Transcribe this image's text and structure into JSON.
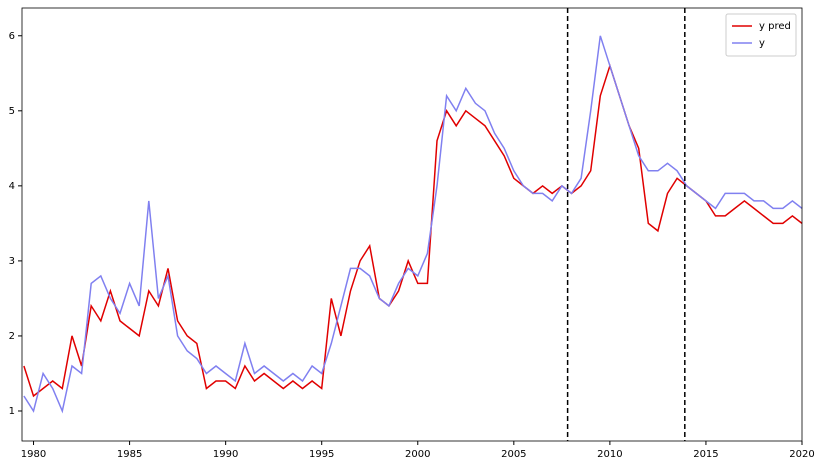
{
  "chart_data": {
    "type": "line",
    "x": [
      1979.5,
      1980,
      1980.5,
      1981,
      1981.5,
      1982,
      1982.5,
      1983,
      1983.5,
      1984,
      1984.5,
      1985,
      1985.5,
      1986,
      1986.5,
      1987,
      1987.5,
      1988,
      1988.5,
      1989,
      1989.5,
      1990,
      1990.5,
      1991,
      1991.5,
      1992,
      1992.5,
      1993,
      1993.5,
      1994,
      1994.5,
      1995,
      1995.5,
      1996,
      1996.5,
      1997,
      1997.5,
      1998,
      1998.5,
      1999,
      1999.5,
      2000,
      2000.5,
      2001,
      2001.5,
      2002,
      2002.5,
      2003,
      2003.5,
      2004,
      2004.5,
      2005,
      2005.5,
      2006,
      2006.5,
      2007,
      2007.5,
      2008,
      2008.5,
      2009,
      2009.5,
      2010,
      2010.5,
      2011,
      2011.5,
      2012,
      2012.5,
      2013,
      2013.5,
      2014,
      2014.5,
      2015,
      2015.5,
      2016,
      2016.5,
      2017,
      2017.5,
      2018,
      2018.5,
      2019,
      2019.5,
      2020
    ],
    "series": [
      {
        "name": "y pred",
        "color": "#e00000",
        "values": [
          1.6,
          1.2,
          1.3,
          1.4,
          1.3,
          2.0,
          1.6,
          2.4,
          2.2,
          2.6,
          2.2,
          2.1,
          2.0,
          2.6,
          2.4,
          2.9,
          2.2,
          2.0,
          1.9,
          1.3,
          1.4,
          1.4,
          1.3,
          1.6,
          1.4,
          1.5,
          1.4,
          1.3,
          1.4,
          1.3,
          1.4,
          1.3,
          2.5,
          2.0,
          2.6,
          3.0,
          3.2,
          2.5,
          2.4,
          2.6,
          3.0,
          2.7,
          2.7,
          4.6,
          5.0,
          4.8,
          5.0,
          4.9,
          4.8,
          4.6,
          4.4,
          4.1,
          4.0,
          3.9,
          4.0,
          3.9,
          4.0,
          3.9,
          4.0,
          4.2,
          5.2,
          5.6,
          5.2,
          4.8,
          4.5,
          3.5,
          3.4,
          3.9,
          4.1,
          4.0,
          3.9,
          3.8,
          3.6,
          3.6,
          3.7,
          3.8,
          3.7,
          3.6,
          3.5,
          3.5,
          3.6,
          3.5
        ]
      },
      {
        "name": "y",
        "color": "#8080f0",
        "values": [
          1.2,
          1.0,
          1.5,
          1.3,
          1.0,
          1.6,
          1.5,
          2.7,
          2.8,
          2.5,
          2.3,
          2.7,
          2.4,
          3.8,
          2.5,
          2.8,
          2.0,
          1.8,
          1.7,
          1.5,
          1.6,
          1.5,
          1.4,
          1.9,
          1.5,
          1.6,
          1.5,
          1.4,
          1.5,
          1.4,
          1.6,
          1.5,
          1.9,
          2.4,
          2.9,
          2.9,
          2.8,
          2.5,
          2.4,
          2.7,
          2.9,
          2.8,
          3.1,
          4.0,
          5.2,
          5.0,
          5.3,
          5.1,
          5.0,
          4.7,
          4.5,
          4.2,
          4.0,
          3.9,
          3.9,
          3.8,
          4.0,
          3.9,
          4.1,
          5.0,
          6.0,
          5.6,
          5.2,
          4.8,
          4.4,
          4.2,
          4.2,
          4.3,
          4.2,
          4.0,
          3.9,
          3.8,
          3.7,
          3.9,
          3.9,
          3.9,
          3.8,
          3.8,
          3.7,
          3.7,
          3.8,
          3.7
        ]
      }
    ],
    "vlines": [
      2007.8,
      2013.9
    ],
    "xlim": [
      1979.4,
      2020
    ],
    "ylim": [
      0.6,
      6.37
    ],
    "xticks": [
      1980,
      1985,
      1990,
      1995,
      2000,
      2005,
      2010,
      2015,
      2020
    ],
    "yticks": [
      1,
      2,
      3,
      4,
      5,
      6
    ],
    "grid": false,
    "legend": "upper right"
  }
}
